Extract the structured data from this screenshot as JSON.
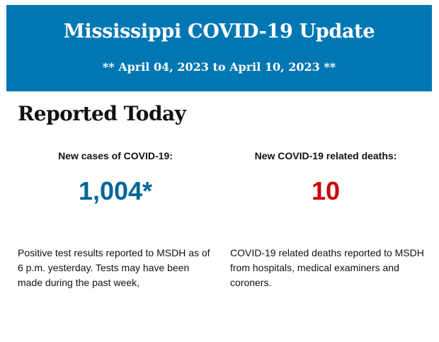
{
  "header": {
    "title": "Mississippi COVID-19 Update",
    "date_range": "** April 04, 2023 to April 10, 2023 **",
    "background_color": "#0077b3"
  },
  "section_title": "Reported Today",
  "cases": {
    "label": "New cases of COVID-19:",
    "value": "1,004*",
    "color": "#006699",
    "description": "Positive test results reported to MSDH as of 6 p.m. yesterday. Tests may have been made during the past week,"
  },
  "deaths": {
    "label": "New COVID-19 related deaths:",
    "value": "10",
    "color": "#cc0000",
    "description": "COVID-19 related deaths reported to MSDH from hospitals, medical examiners and coroners."
  }
}
